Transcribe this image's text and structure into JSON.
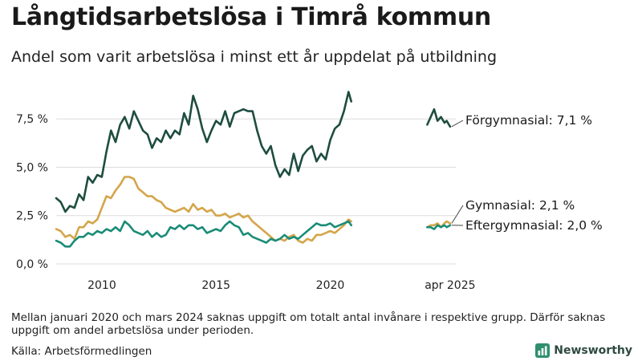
{
  "title": "Långtidsarbetslösa i Timrå kommun",
  "subtitle": "Andel som varit arbetslösa i minst ett år uppdelat på utbildning",
  "note": "Mellan januari 2020 och mars 2024 saknas uppgift om totalt antal invånare i respektive grupp. Därför saknas uppgift om andel arbetslösa under perioden.",
  "source": "Källa: Arbetsförmedlingen",
  "brand": "Newsworthy",
  "chart_data": {
    "type": "line",
    "xlim": [
      2008.0,
      2025.5
    ],
    "ylim": [
      0,
      9.5
    ],
    "y_ticks": [
      {
        "value": 0,
        "label": "0,0 %"
      },
      {
        "value": 2.5,
        "label": "2,5 %"
      },
      {
        "value": 5,
        "label": "5,0 %"
      },
      {
        "value": 7.5,
        "label": "7,5 %"
      }
    ],
    "x_ticks": [
      {
        "value": 2010,
        "label": "2010"
      },
      {
        "value": 2015,
        "label": "2015"
      },
      {
        "value": 2020,
        "label": "2020"
      },
      {
        "value": 2025.25,
        "label": "apr 2025"
      }
    ],
    "grid": true,
    "series": [
      {
        "name": "Förgymnasial",
        "label": "Förgymnasial: 7,1 %",
        "color": "#1e4d40",
        "segments": [
          [
            [
              2008.0,
              3.4
            ],
            [
              2008.2,
              3.2
            ],
            [
              2008.4,
              2.7
            ],
            [
              2008.6,
              3.0
            ],
            [
              2008.8,
              2.9
            ],
            [
              2009.0,
              3.6
            ],
            [
              2009.2,
              3.3
            ],
            [
              2009.4,
              4.5
            ],
            [
              2009.6,
              4.2
            ],
            [
              2009.8,
              4.6
            ],
            [
              2010.0,
              4.5
            ],
            [
              2010.2,
              5.8
            ],
            [
              2010.4,
              6.9
            ],
            [
              2010.6,
              6.3
            ],
            [
              2010.8,
              7.2
            ],
            [
              2011.0,
              7.6
            ],
            [
              2011.2,
              7.0
            ],
            [
              2011.4,
              7.9
            ],
            [
              2011.6,
              7.4
            ],
            [
              2011.8,
              6.9
            ],
            [
              2012.0,
              6.7
            ],
            [
              2012.2,
              6.0
            ],
            [
              2012.4,
              6.5
            ],
            [
              2012.6,
              6.3
            ],
            [
              2012.8,
              6.9
            ],
            [
              2013.0,
              6.5
            ],
            [
              2013.2,
              6.9
            ],
            [
              2013.4,
              6.7
            ],
            [
              2013.6,
              7.8
            ],
            [
              2013.8,
              7.2
            ],
            [
              2014.0,
              8.7
            ],
            [
              2014.2,
              8.0
            ],
            [
              2014.4,
              7.0
            ],
            [
              2014.6,
              6.3
            ],
            [
              2014.8,
              6.9
            ],
            [
              2015.0,
              7.4
            ],
            [
              2015.2,
              7.2
            ],
            [
              2015.4,
              7.9
            ],
            [
              2015.6,
              7.1
            ],
            [
              2015.8,
              7.8
            ],
            [
              2016.0,
              7.9
            ],
            [
              2016.2,
              8.0
            ],
            [
              2016.4,
              7.9
            ],
            [
              2016.6,
              7.9
            ],
            [
              2016.8,
              6.9
            ],
            [
              2017.0,
              6.1
            ],
            [
              2017.2,
              5.7
            ],
            [
              2017.4,
              6.1
            ],
            [
              2017.6,
              5.1
            ],
            [
              2017.8,
              4.5
            ],
            [
              2018.0,
              4.9
            ],
            [
              2018.2,
              4.6
            ],
            [
              2018.4,
              5.7
            ],
            [
              2018.6,
              4.8
            ],
            [
              2018.8,
              5.6
            ],
            [
              2019.0,
              5.9
            ],
            [
              2019.2,
              6.1
            ],
            [
              2019.4,
              5.3
            ],
            [
              2019.6,
              5.7
            ],
            [
              2019.8,
              5.4
            ],
            [
              2020.0,
              6.4
            ],
            [
              2020.2,
              7.0
            ],
            [
              2020.4,
              7.2
            ],
            [
              2020.6,
              7.9
            ],
            [
              2020.8,
              8.9
            ],
            [
              2020.92,
              8.4
            ]
          ],
          [
            [
              2024.25,
              7.2
            ],
            [
              2024.4,
              7.6
            ],
            [
              2024.55,
              8.0
            ],
            [
              2024.7,
              7.4
            ],
            [
              2024.85,
              7.6
            ],
            [
              2025.0,
              7.3
            ],
            [
              2025.1,
              7.4
            ],
            [
              2025.25,
              7.1
            ]
          ]
        ]
      },
      {
        "name": "Gymnasial",
        "label": "Gymnasial: 2,1 %",
        "color": "#d4a54a",
        "segments": [
          [
            [
              2008.0,
              1.8
            ],
            [
              2008.2,
              1.7
            ],
            [
              2008.4,
              1.4
            ],
            [
              2008.6,
              1.5
            ],
            [
              2008.8,
              1.3
            ],
            [
              2009.0,
              1.9
            ],
            [
              2009.2,
              1.9
            ],
            [
              2009.4,
              2.2
            ],
            [
              2009.6,
              2.1
            ],
            [
              2009.8,
              2.3
            ],
            [
              2010.0,
              2.9
            ],
            [
              2010.2,
              3.5
            ],
            [
              2010.4,
              3.4
            ],
            [
              2010.6,
              3.8
            ],
            [
              2010.8,
              4.1
            ],
            [
              2011.0,
              4.5
            ],
            [
              2011.2,
              4.5
            ],
            [
              2011.4,
              4.4
            ],
            [
              2011.6,
              3.9
            ],
            [
              2011.8,
              3.7
            ],
            [
              2012.0,
              3.5
            ],
            [
              2012.2,
              3.5
            ],
            [
              2012.4,
              3.3
            ],
            [
              2012.6,
              3.2
            ],
            [
              2012.8,
              2.9
            ],
            [
              2013.0,
              2.8
            ],
            [
              2013.2,
              2.7
            ],
            [
              2013.4,
              2.8
            ],
            [
              2013.6,
              2.9
            ],
            [
              2013.8,
              2.7
            ],
            [
              2014.0,
              3.1
            ],
            [
              2014.2,
              2.8
            ],
            [
              2014.4,
              2.9
            ],
            [
              2014.6,
              2.7
            ],
            [
              2014.8,
              2.8
            ],
            [
              2015.0,
              2.5
            ],
            [
              2015.2,
              2.5
            ],
            [
              2015.4,
              2.6
            ],
            [
              2015.6,
              2.4
            ],
            [
              2015.8,
              2.5
            ],
            [
              2016.0,
              2.6
            ],
            [
              2016.2,
              2.4
            ],
            [
              2016.4,
              2.5
            ],
            [
              2016.6,
              2.2
            ],
            [
              2016.8,
              2.0
            ],
            [
              2017.0,
              1.8
            ],
            [
              2017.2,
              1.6
            ],
            [
              2017.4,
              1.4
            ],
            [
              2017.6,
              1.2
            ],
            [
              2017.8,
              1.3
            ],
            [
              2018.0,
              1.2
            ],
            [
              2018.2,
              1.4
            ],
            [
              2018.4,
              1.5
            ],
            [
              2018.6,
              1.2
            ],
            [
              2018.8,
              1.1
            ],
            [
              2019.0,
              1.3
            ],
            [
              2019.2,
              1.2
            ],
            [
              2019.4,
              1.5
            ],
            [
              2019.6,
              1.5
            ],
            [
              2019.8,
              1.6
            ],
            [
              2020.0,
              1.7
            ],
            [
              2020.2,
              1.6
            ],
            [
              2020.4,
              1.8
            ],
            [
              2020.6,
              2.0
            ],
            [
              2020.8,
              2.3
            ],
            [
              2020.92,
              2.2
            ]
          ],
          [
            [
              2024.25,
              1.9
            ],
            [
              2024.4,
              2.0
            ],
            [
              2024.55,
              2.0
            ],
            [
              2024.7,
              2.1
            ],
            [
              2024.85,
              1.9
            ],
            [
              2025.0,
              2.1
            ],
            [
              2025.1,
              2.2
            ],
            [
              2025.25,
              2.1
            ]
          ]
        ]
      },
      {
        "name": "Eftergymnasial",
        "label": "Eftergymnasial: 2,0 %",
        "color": "#1a8c77",
        "segments": [
          [
            [
              2008.0,
              1.2
            ],
            [
              2008.2,
              1.1
            ],
            [
              2008.4,
              0.9
            ],
            [
              2008.6,
              0.9
            ],
            [
              2008.8,
              1.2
            ],
            [
              2009.0,
              1.4
            ],
            [
              2009.2,
              1.4
            ],
            [
              2009.4,
              1.6
            ],
            [
              2009.6,
              1.5
            ],
            [
              2009.8,
              1.7
            ],
            [
              2010.0,
              1.6
            ],
            [
              2010.2,
              1.8
            ],
            [
              2010.4,
              1.7
            ],
            [
              2010.6,
              1.9
            ],
            [
              2010.8,
              1.7
            ],
            [
              2011.0,
              2.2
            ],
            [
              2011.2,
              2.0
            ],
            [
              2011.4,
              1.7
            ],
            [
              2011.6,
              1.6
            ],
            [
              2011.8,
              1.5
            ],
            [
              2012.0,
              1.7
            ],
            [
              2012.2,
              1.4
            ],
            [
              2012.4,
              1.6
            ],
            [
              2012.6,
              1.4
            ],
            [
              2012.8,
              1.5
            ],
            [
              2013.0,
              1.9
            ],
            [
              2013.2,
              1.8
            ],
            [
              2013.4,
              2.0
            ],
            [
              2013.6,
              1.8
            ],
            [
              2013.8,
              2.0
            ],
            [
              2014.0,
              2.0
            ],
            [
              2014.2,
              1.8
            ],
            [
              2014.4,
              1.9
            ],
            [
              2014.6,
              1.6
            ],
            [
              2014.8,
              1.7
            ],
            [
              2015.0,
              1.8
            ],
            [
              2015.2,
              1.7
            ],
            [
              2015.4,
              2.0
            ],
            [
              2015.6,
              2.2
            ],
            [
              2015.8,
              2.0
            ],
            [
              2016.0,
              1.9
            ],
            [
              2016.2,
              1.5
            ],
            [
              2016.4,
              1.6
            ],
            [
              2016.6,
              1.4
            ],
            [
              2016.8,
              1.3
            ],
            [
              2017.0,
              1.2
            ],
            [
              2017.2,
              1.1
            ],
            [
              2017.4,
              1.3
            ],
            [
              2017.6,
              1.2
            ],
            [
              2017.8,
              1.3
            ],
            [
              2018.0,
              1.5
            ],
            [
              2018.2,
              1.3
            ],
            [
              2018.4,
              1.4
            ],
            [
              2018.6,
              1.3
            ],
            [
              2018.8,
              1.5
            ],
            [
              2019.0,
              1.7
            ],
            [
              2019.2,
              1.9
            ],
            [
              2019.4,
              2.1
            ],
            [
              2019.6,
              2.0
            ],
            [
              2019.8,
              2.0
            ],
            [
              2020.0,
              2.1
            ],
            [
              2020.2,
              1.9
            ],
            [
              2020.4,
              2.0
            ],
            [
              2020.6,
              2.1
            ],
            [
              2020.8,
              2.2
            ],
            [
              2020.92,
              2.0
            ]
          ],
          [
            [
              2024.25,
              1.9
            ],
            [
              2024.4,
              1.9
            ],
            [
              2024.55,
              1.8
            ],
            [
              2024.7,
              2.0
            ],
            [
              2024.85,
              1.9
            ],
            [
              2025.0,
              2.0
            ],
            [
              2025.1,
              1.9
            ],
            [
              2025.25,
              2.0
            ]
          ]
        ]
      }
    ]
  }
}
